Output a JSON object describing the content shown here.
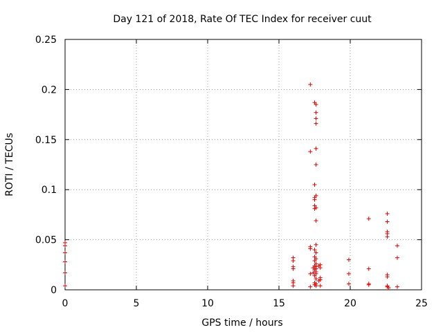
{
  "chart_data": {
    "type": "scatter",
    "title": "Day 121 of 2018, Rate Of TEC Index for receiver cuut",
    "xlabel": "GPS time / hours",
    "ylabel": "ROTI / TECUs",
    "xlim": [
      0,
      25
    ],
    "ylim": [
      0,
      0.25
    ],
    "xticks": [
      0,
      5,
      10,
      15,
      20,
      25
    ],
    "xtick_labels": [
      "0",
      "5",
      "10",
      "15",
      "20",
      "25"
    ],
    "yticks": [
      0,
      0.05,
      0.1,
      0.15,
      0.2,
      0.25
    ],
    "ytick_labels": [
      "0",
      "0.05",
      "0.1",
      "0.15",
      "0.2",
      "0.25"
    ],
    "grid": true,
    "marker": "+",
    "color": "#dd0000",
    "series": [
      {
        "points": [
          [
            0.0,
            0.047
          ],
          [
            0.0,
            0.044
          ],
          [
            0.0,
            0.037
          ],
          [
            0.0,
            0.028
          ],
          [
            0.0,
            0.017
          ],
          [
            0.0,
            0.004
          ],
          [
            16.0,
            0.032
          ],
          [
            16.0,
            0.029
          ],
          [
            16.0,
            0.023
          ],
          [
            16.0,
            0.021
          ],
          [
            16.0,
            0.009
          ],
          [
            16.0,
            0.007
          ],
          [
            16.0,
            0.004
          ],
          [
            17.2,
            0.205
          ],
          [
            17.2,
            0.138
          ],
          [
            17.2,
            0.043
          ],
          [
            17.2,
            0.041
          ],
          [
            17.2,
            0.016
          ],
          [
            17.2,
            0.003
          ],
          [
            17.5,
            0.187
          ],
          [
            17.6,
            0.185
          ],
          [
            17.6,
            0.177
          ],
          [
            17.6,
            0.171
          ],
          [
            17.6,
            0.166
          ],
          [
            17.6,
            0.141
          ],
          [
            17.6,
            0.125
          ],
          [
            17.5,
            0.105
          ],
          [
            17.6,
            0.094
          ],
          [
            17.5,
            0.092
          ],
          [
            17.5,
            0.09
          ],
          [
            17.5,
            0.084
          ],
          [
            17.6,
            0.082
          ],
          [
            17.5,
            0.081
          ],
          [
            17.6,
            0.069
          ],
          [
            17.6,
            0.045
          ],
          [
            17.5,
            0.04
          ],
          [
            17.6,
            0.037
          ],
          [
            17.5,
            0.033
          ],
          [
            17.6,
            0.031
          ],
          [
            17.5,
            0.029
          ],
          [
            17.6,
            0.026
          ],
          [
            17.5,
            0.024
          ],
          [
            17.6,
            0.023
          ],
          [
            17.4,
            0.022
          ],
          [
            17.6,
            0.021
          ],
          [
            17.5,
            0.02
          ],
          [
            17.6,
            0.018
          ],
          [
            17.4,
            0.017
          ],
          [
            17.6,
            0.016
          ],
          [
            17.5,
            0.014
          ],
          [
            17.6,
            0.011
          ],
          [
            17.5,
            0.007
          ],
          [
            17.6,
            0.006
          ],
          [
            17.5,
            0.005
          ],
          [
            17.6,
            0.004
          ],
          [
            17.8,
            0.024
          ],
          [
            17.9,
            0.022
          ],
          [
            17.9,
            0.025
          ],
          [
            17.9,
            0.012
          ],
          [
            17.9,
            0.01
          ],
          [
            17.8,
            0.009
          ],
          [
            17.9,
            0.004
          ],
          [
            19.9,
            0.03
          ],
          [
            19.9,
            0.016
          ],
          [
            19.9,
            0.006
          ],
          [
            21.3,
            0.071
          ],
          [
            21.3,
            0.021
          ],
          [
            21.3,
            0.006
          ],
          [
            21.3,
            0.005
          ],
          [
            22.6,
            0.076
          ],
          [
            22.6,
            0.068
          ],
          [
            22.6,
            0.058
          ],
          [
            22.6,
            0.056
          ],
          [
            22.6,
            0.053
          ],
          [
            22.6,
            0.015
          ],
          [
            22.6,
            0.013
          ],
          [
            22.6,
            0.004
          ],
          [
            22.6,
            0.003
          ],
          [
            22.7,
            0.002
          ],
          [
            23.3,
            0.044
          ],
          [
            23.3,
            0.032
          ],
          [
            23.3,
            0.003
          ]
        ]
      }
    ]
  }
}
